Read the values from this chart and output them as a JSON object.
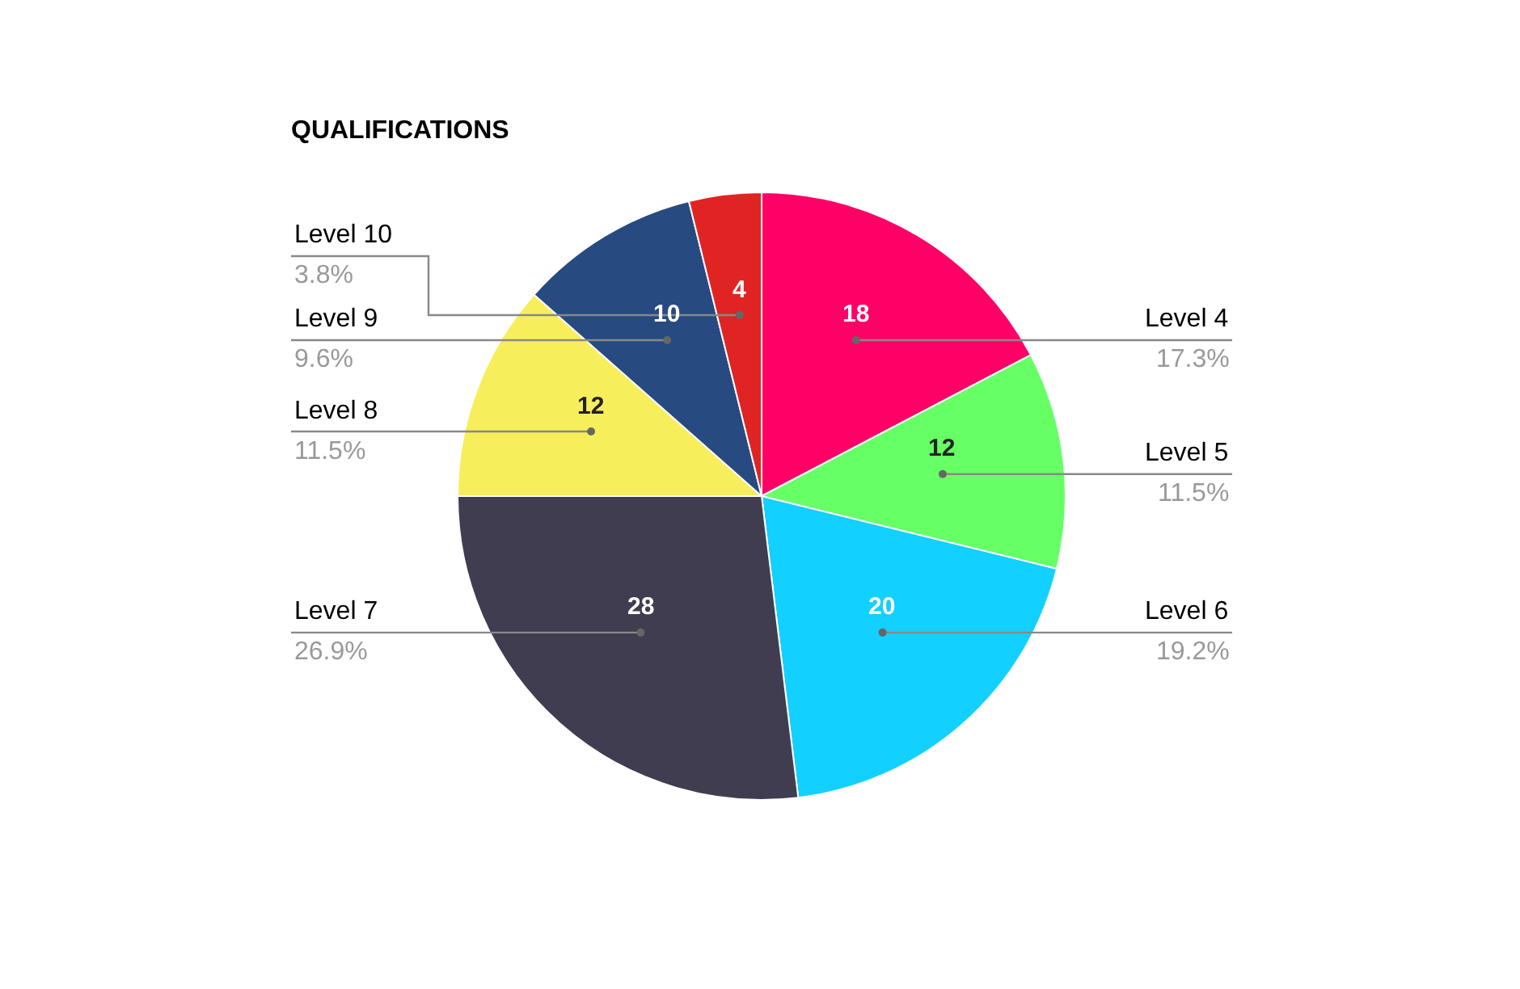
{
  "chart_data": {
    "type": "pie",
    "title": "QUALIFICATIONS",
    "categories": [
      "Level 4",
      "Level 5",
      "Level 6",
      "Level 7",
      "Level 8",
      "Level 9",
      "Level 10"
    ],
    "values": [
      18,
      12,
      20,
      28,
      12,
      10,
      4
    ],
    "colors": [
      "#ff0066",
      "#66ff66",
      "#12d0ff",
      "#403d50",
      "#f7ee5c",
      "#274a80",
      "#e02424"
    ],
    "data_labels": true,
    "annotations": [
      "17.3%",
      "11.5%",
      "19.2%",
      "26.9%",
      "11.5%",
      "9.6%",
      "3.8%"
    ],
    "legend": false
  }
}
